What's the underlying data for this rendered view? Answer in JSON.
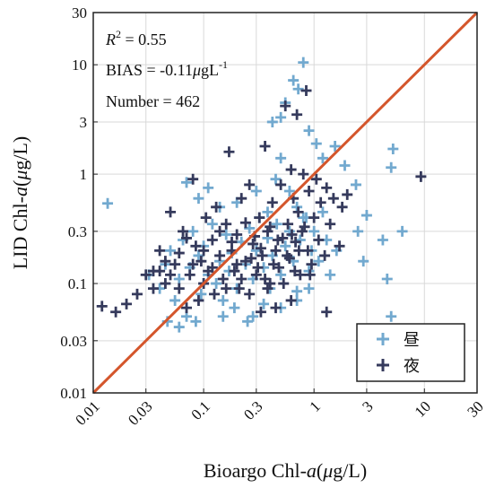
{
  "chart_data": {
    "type": "scatter",
    "title": "",
    "xlabel_parts": {
      "prefix": "Bioargo Chl-",
      "var": "a",
      "paren_open": "(",
      "mu": "μ",
      "unit_rest": "g/L)"
    },
    "ylabel_parts": {
      "prefix": "LID Chl-",
      "var": "a",
      "paren_open": "(",
      "mu": "μ",
      "unit_rest": "g/L)"
    },
    "x_scale": "log",
    "y_scale": "log",
    "xlim": [
      0.01,
      30
    ],
    "ylim": [
      0.01,
      30
    ],
    "x_ticks": [
      0.01,
      0.03,
      0.1,
      0.3,
      1,
      3,
      10,
      30
    ],
    "x_tick_labels": [
      "0.01",
      "0.03",
      "0.1",
      "0.3",
      "1",
      "3",
      "10",
      "30"
    ],
    "y_ticks": [
      0.01,
      0.03,
      0.1,
      0.3,
      1,
      3,
      10,
      30
    ],
    "y_tick_labels": [
      "0.01",
      "0.03",
      "0.1",
      "0.3",
      "1",
      "3",
      "10",
      "30"
    ],
    "grid": true,
    "one_to_one_line": {
      "from": [
        0.01,
        0.01
      ],
      "to": [
        30,
        30
      ],
      "color": "#d4562c"
    },
    "stats": {
      "r2_symbol": "R",
      "r2_exponent": "2",
      "r2_value": " = 0.55",
      "bias_text": "BIAS = -0.11",
      "bias_mu": "μ",
      "bias_unit": "gL",
      "bias_exponent": "-1",
      "number_text": "Number = 462"
    },
    "legend": {
      "position": "bottom-right",
      "entries": [
        "昼",
        "夜"
      ]
    },
    "series": [
      {
        "name": "昼",
        "color": "#72a9cf",
        "marker": "+",
        "points": [
          [
            0.0135,
            0.54
          ],
          [
            0.8,
            10.5
          ],
          [
            0.65,
            7.2
          ],
          [
            0.72,
            6.0
          ],
          [
            0.55,
            4.5
          ],
          [
            0.5,
            3.3
          ],
          [
            0.42,
            3.0
          ],
          [
            0.9,
            2.5
          ],
          [
            1.05,
            1.9
          ],
          [
            1.2,
            1.4
          ],
          [
            1.55,
            1.8
          ],
          [
            1.9,
            1.2
          ],
          [
            2.4,
            0.8
          ],
          [
            5.2,
            1.7
          ],
          [
            5.0,
            1.15
          ],
          [
            6.3,
            0.3
          ],
          [
            4.2,
            0.25
          ],
          [
            3.0,
            0.42
          ],
          [
            2.5,
            0.3
          ],
          [
            2.8,
            0.16
          ],
          [
            4.6,
            0.11
          ],
          [
            5.0,
            0.05
          ],
          [
            0.07,
            0.84
          ],
          [
            0.09,
            0.6
          ],
          [
            0.11,
            0.75
          ],
          [
            0.14,
            0.5
          ],
          [
            0.2,
            0.55
          ],
          [
            0.3,
            0.7
          ],
          [
            0.38,
            0.45
          ],
          [
            0.45,
            0.9
          ],
          [
            0.5,
            1.4
          ],
          [
            0.6,
            0.7
          ],
          [
            0.7,
            0.5
          ],
          [
            0.85,
            0.4
          ],
          [
            1.0,
            0.3
          ],
          [
            1.3,
            0.25
          ],
          [
            1.6,
            0.2
          ],
          [
            0.032,
            0.12
          ],
          [
            0.04,
            0.09
          ],
          [
            0.045,
            0.15
          ],
          [
            0.05,
            0.2
          ],
          [
            0.055,
            0.07
          ],
          [
            0.06,
            0.11
          ],
          [
            0.065,
            0.25
          ],
          [
            0.07,
            0.05
          ],
          [
            0.075,
            0.14
          ],
          [
            0.08,
            0.3
          ],
          [
            0.085,
            0.045
          ],
          [
            0.09,
            0.18
          ],
          [
            0.095,
            0.08
          ],
          [
            0.1,
            0.22
          ],
          [
            0.11,
            0.12
          ],
          [
            0.12,
            0.35
          ],
          [
            0.13,
            0.1
          ],
          [
            0.14,
            0.16
          ],
          [
            0.15,
            0.07
          ],
          [
            0.16,
            0.28
          ],
          [
            0.17,
            0.13
          ],
          [
            0.18,
            0.19
          ],
          [
            0.2,
            0.09
          ],
          [
            0.22,
            0.24
          ],
          [
            0.24,
            0.15
          ],
          [
            0.26,
            0.32
          ],
          [
            0.28,
            0.11
          ],
          [
            0.3,
            0.2
          ],
          [
            0.32,
            0.4
          ],
          [
            0.35,
            0.14
          ],
          [
            0.38,
            0.26
          ],
          [
            0.4,
            0.09
          ],
          [
            0.42,
            0.18
          ],
          [
            0.46,
            0.35
          ],
          [
            0.5,
            0.12
          ],
          [
            0.55,
            0.22
          ],
          [
            0.6,
            0.3
          ],
          [
            0.65,
            0.16
          ],
          [
            0.7,
            0.085
          ],
          [
            0.75,
            0.25
          ],
          [
            0.8,
            0.4
          ],
          [
            0.9,
            0.13
          ],
          [
            0.95,
            0.2
          ],
          [
            1.1,
            0.16
          ],
          [
            1.2,
            0.45
          ],
          [
            1.4,
            0.12
          ],
          [
            0.047,
            0.045
          ],
          [
            0.06,
            0.04
          ],
          [
            0.28,
            0.05
          ],
          [
            0.5,
            0.06
          ],
          [
            0.7,
            0.07
          ],
          [
            0.9,
            0.09
          ],
          [
            0.25,
            0.045
          ],
          [
            0.35,
            0.065
          ],
          [
            0.15,
            0.05
          ],
          [
            0.19,
            0.06
          ]
        ]
      },
      {
        "name": "夜",
        "color": "#353a5c",
        "marker": "+",
        "points": [
          [
            0.012,
            0.062
          ],
          [
            0.016,
            0.055
          ],
          [
            0.02,
            0.065
          ],
          [
            0.025,
            0.08
          ],
          [
            0.03,
            0.12
          ],
          [
            0.035,
            0.13
          ],
          [
            0.04,
            0.2
          ],
          [
            0.045,
            0.1
          ],
          [
            0.05,
            0.45
          ],
          [
            0.055,
            0.15
          ],
          [
            0.06,
            0.09
          ],
          [
            0.065,
            0.3
          ],
          [
            0.07,
            0.06
          ],
          [
            0.075,
            0.12
          ],
          [
            0.08,
            0.9
          ],
          [
            0.085,
            0.22
          ],
          [
            0.09,
            0.07
          ],
          [
            0.095,
            0.16
          ],
          [
            0.1,
            0.1
          ],
          [
            0.105,
            0.4
          ],
          [
            0.11,
            0.13
          ],
          [
            0.12,
            0.25
          ],
          [
            0.125,
            0.08
          ],
          [
            0.13,
            0.5
          ],
          [
            0.14,
            0.18
          ],
          [
            0.15,
            0.11
          ],
          [
            0.16,
            0.35
          ],
          [
            0.17,
            1.6
          ],
          [
            0.18,
            0.2
          ],
          [
            0.19,
            0.13
          ],
          [
            0.2,
            0.28
          ],
          [
            0.21,
            0.09
          ],
          [
            0.22,
            0.6
          ],
          [
            0.24,
            0.16
          ],
          [
            0.26,
            0.8
          ],
          [
            0.28,
            0.23
          ],
          [
            0.3,
            0.12
          ],
          [
            0.32,
            0.4
          ],
          [
            0.34,
            0.18
          ],
          [
            0.36,
            1.8
          ],
          [
            0.38,
            0.3
          ],
          [
            0.4,
            0.1
          ],
          [
            0.42,
            0.55
          ],
          [
            0.45,
            0.2
          ],
          [
            0.48,
            0.14
          ],
          [
            0.5,
            0.8
          ],
          [
            0.52,
            0.26
          ],
          [
            0.55,
            4.2
          ],
          [
            0.58,
            0.35
          ],
          [
            0.6,
            0.17
          ],
          [
            0.62,
            1.1
          ],
          [
            0.65,
            0.6
          ],
          [
            0.68,
            0.24
          ],
          [
            0.7,
            3.5
          ],
          [
            0.72,
            0.45
          ],
          [
            0.75,
            0.12
          ],
          [
            0.78,
            0.3
          ],
          [
            0.8,
            1.0
          ],
          [
            0.85,
            5.8
          ],
          [
            0.88,
            0.2
          ],
          [
            0.9,
            0.7
          ],
          [
            0.95,
            0.15
          ],
          [
            1.0,
            0.4
          ],
          [
            1.05,
            0.9
          ],
          [
            1.1,
            0.25
          ],
          [
            1.15,
            0.55
          ],
          [
            1.25,
            0.18
          ],
          [
            1.3,
            0.75
          ],
          [
            1.4,
            0.35
          ],
          [
            1.5,
            0.6
          ],
          [
            1.7,
            0.22
          ],
          [
            1.8,
            0.5
          ],
          [
            2.0,
            0.65
          ],
          [
            9.3,
            0.95
          ],
          [
            0.33,
            0.055
          ],
          [
            0.45,
            0.06
          ],
          [
            0.62,
            0.07
          ],
          [
            1.3,
            0.055
          ],
          [
            0.26,
            0.08
          ],
          [
            0.38,
            0.09
          ],
          [
            0.08,
            0.15
          ],
          [
            0.1,
            0.2
          ],
          [
            0.12,
            0.14
          ],
          [
            0.14,
            0.3
          ],
          [
            0.16,
            0.09
          ],
          [
            0.18,
            0.24
          ],
          [
            0.2,
            0.15
          ],
          [
            0.22,
            0.11
          ],
          [
            0.24,
            0.36
          ],
          [
            0.27,
            0.17
          ],
          [
            0.29,
            0.27
          ],
          [
            0.31,
            0.14
          ],
          [
            0.33,
            0.21
          ],
          [
            0.36,
            0.11
          ],
          [
            0.4,
            0.33
          ],
          [
            0.43,
            0.15
          ],
          [
            0.47,
            0.25
          ],
          [
            0.53,
            0.1
          ],
          [
            0.57,
            0.18
          ],
          [
            0.63,
            0.28
          ],
          [
            0.67,
            0.13
          ],
          [
            0.73,
            0.2
          ],
          [
            0.82,
            0.33
          ],
          [
            0.92,
            0.12
          ],
          [
            0.06,
            0.19
          ],
          [
            0.07,
            0.26
          ],
          [
            0.05,
            0.12
          ],
          [
            0.045,
            0.16
          ],
          [
            0.04,
            0.13
          ],
          [
            0.035,
            0.09
          ]
        ]
      }
    ]
  }
}
